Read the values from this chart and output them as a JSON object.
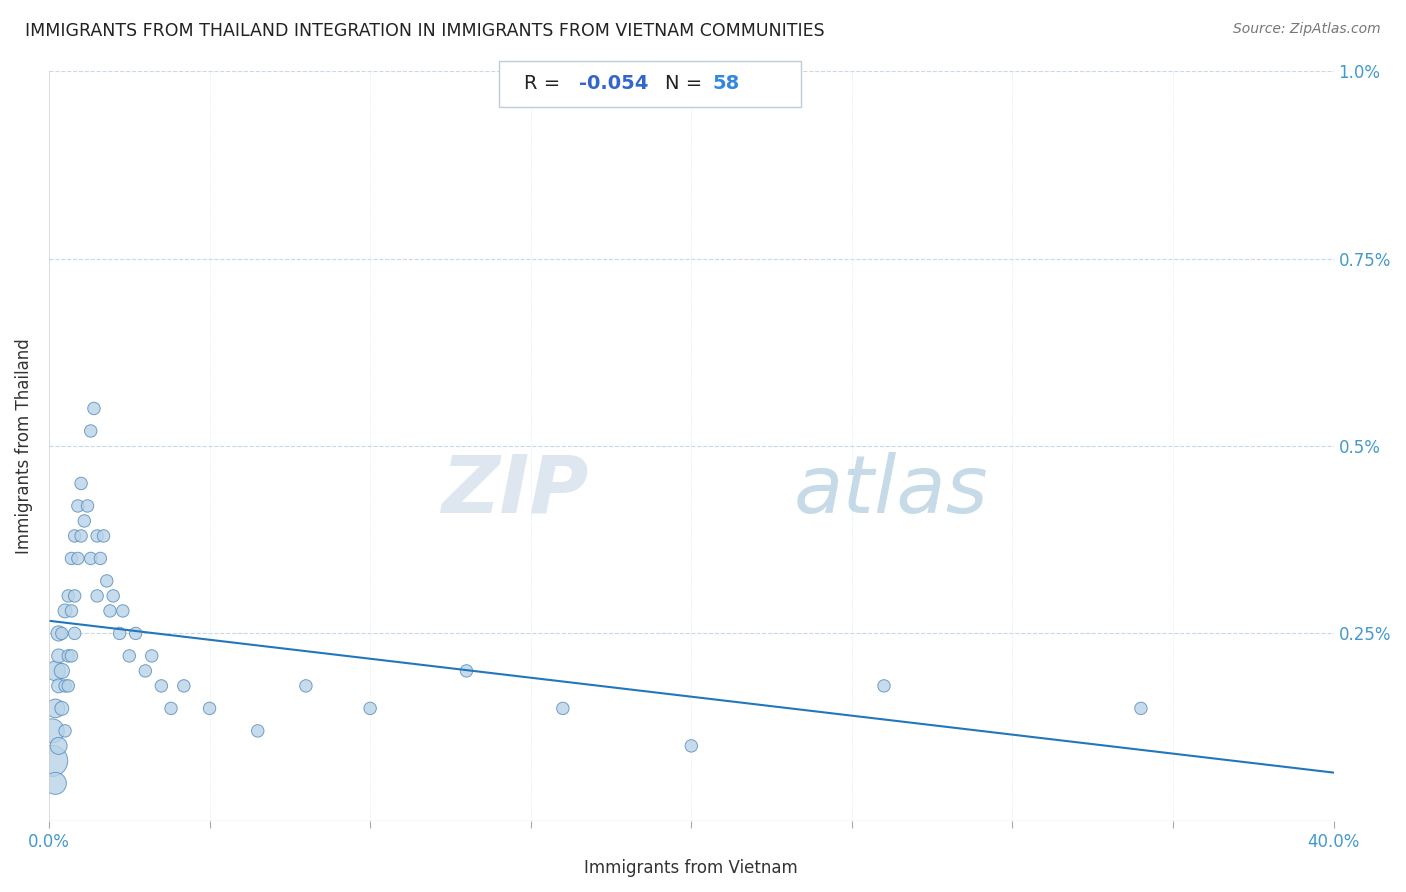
{
  "title": "IMMIGRANTS FROM THAILAND INTEGRATION IN IMMIGRANTS FROM VIETNAM COMMUNITIES",
  "source": "Source: ZipAtlas.com",
  "xlabel": "Immigrants from Vietnam",
  "ylabel": "Immigrants from Thailand",
  "R": -0.054,
  "N": 58,
  "xlim": [
    0.0,
    0.4
  ],
  "ylim": [
    0.0,
    0.01
  ],
  "ytick_labels": [
    "",
    "0.25%",
    "0.5%",
    "0.75%",
    "1.0%"
  ],
  "ytick_positions": [
    0.0,
    0.0025,
    0.005,
    0.0075,
    0.01
  ],
  "scatter_color": "#b8d4e8",
  "scatter_edge_color": "#5588bb",
  "line_color": "#2277bb",
  "title_color": "#222222",
  "axis_label_color": "#333333",
  "tick_color": "#4499cc",
  "annotation_box_color": "#ffffff",
  "annotation_border_color": "#aabbcc",
  "R_value_color": "#4477cc",
  "N_value_color": "#4488dd",
  "label_color": "#222222",
  "watermark_color": "#c5d8e8",
  "scatter_x": [
    0.001,
    0.001,
    0.002,
    0.002,
    0.002,
    0.003,
    0.003,
    0.003,
    0.003,
    0.004,
    0.004,
    0.004,
    0.005,
    0.005,
    0.005,
    0.006,
    0.006,
    0.006,
    0.007,
    0.007,
    0.007,
    0.008,
    0.008,
    0.008,
    0.009,
    0.009,
    0.01,
    0.01,
    0.011,
    0.012,
    0.013,
    0.013,
    0.014,
    0.015,
    0.015,
    0.016,
    0.017,
    0.018,
    0.019,
    0.02,
    0.022,
    0.023,
    0.025,
    0.027,
    0.03,
    0.032,
    0.035,
    0.038,
    0.042,
    0.05,
    0.065,
    0.08,
    0.1,
    0.13,
    0.16,
    0.2,
    0.26,
    0.34
  ],
  "scatter_y": [
    0.0008,
    0.0012,
    0.002,
    0.0015,
    0.0005,
    0.0025,
    0.0018,
    0.001,
    0.0022,
    0.002,
    0.0015,
    0.0025,
    0.0028,
    0.0018,
    0.0012,
    0.003,
    0.0022,
    0.0018,
    0.0035,
    0.0028,
    0.0022,
    0.0038,
    0.003,
    0.0025,
    0.0042,
    0.0035,
    0.0045,
    0.0038,
    0.004,
    0.0042,
    0.0052,
    0.0035,
    0.0055,
    0.0038,
    0.003,
    0.0035,
    0.0038,
    0.0032,
    0.0028,
    0.003,
    0.0025,
    0.0028,
    0.0022,
    0.0025,
    0.002,
    0.0022,
    0.0018,
    0.0015,
    0.0018,
    0.0015,
    0.0012,
    0.0018,
    0.0015,
    0.002,
    0.0015,
    0.001,
    0.0018,
    0.0015
  ],
  "scatter_sizes": [
    500,
    300,
    200,
    180,
    250,
    120,
    100,
    150,
    100,
    120,
    100,
    80,
    100,
    80,
    80,
    80,
    80,
    80,
    80,
    80,
    80,
    80,
    80,
    80,
    80,
    80,
    80,
    80,
    80,
    80,
    80,
    80,
    80,
    80,
    80,
    80,
    80,
    80,
    80,
    80,
    80,
    80,
    80,
    80,
    80,
    80,
    80,
    80,
    80,
    80,
    80,
    80,
    80,
    80,
    80,
    80,
    80,
    80
  ]
}
